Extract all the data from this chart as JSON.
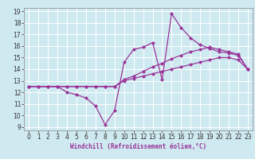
{
  "xlabel": "Windchill (Refroidissement éolien,°C)",
  "bg_color": "#cfe9f0",
  "grid_color": "#ffffff",
  "line_color": "#993399",
  "xlim": [
    -0.5,
    23.5
  ],
  "ylim": [
    8.7,
    19.3
  ],
  "xticks": [
    0,
    1,
    2,
    3,
    4,
    5,
    6,
    7,
    8,
    9,
    10,
    11,
    12,
    13,
    14,
    15,
    16,
    17,
    18,
    19,
    20,
    21,
    22,
    23
  ],
  "yticks": [
    9,
    10,
    11,
    12,
    13,
    14,
    15,
    16,
    17,
    18,
    19
  ],
  "line1_x": [
    0,
    1,
    2,
    3,
    4,
    5,
    6,
    7,
    8,
    9,
    10,
    11,
    12,
    13,
    14,
    15,
    16,
    17,
    18,
    19,
    20,
    21,
    22,
    23
  ],
  "line1_y": [
    12.5,
    12.5,
    12.5,
    12.5,
    12.0,
    11.8,
    11.5,
    10.8,
    9.2,
    10.4,
    14.6,
    15.7,
    15.9,
    16.3,
    13.1,
    18.8,
    17.6,
    16.7,
    16.1,
    15.8,
    15.5,
    15.4,
    15.2,
    14.0
  ],
  "line2_x": [
    0,
    1,
    2,
    3,
    4,
    5,
    6,
    7,
    8,
    9,
    10,
    11,
    12,
    13,
    14,
    15,
    16,
    17,
    18,
    19,
    20,
    21,
    22,
    23
  ],
  "line2_y": [
    12.5,
    12.5,
    12.5,
    12.5,
    12.5,
    12.5,
    12.5,
    12.5,
    12.5,
    12.5,
    13.0,
    13.2,
    13.4,
    13.6,
    13.8,
    14.0,
    14.2,
    14.4,
    14.6,
    14.8,
    15.0,
    15.0,
    14.8,
    14.0
  ],
  "line3_x": [
    0,
    1,
    2,
    3,
    4,
    5,
    6,
    7,
    8,
    9,
    10,
    11,
    12,
    13,
    14,
    15,
    16,
    17,
    18,
    19,
    20,
    21,
    22,
    23
  ],
  "line3_y": [
    12.5,
    12.5,
    12.5,
    12.5,
    12.5,
    12.5,
    12.5,
    12.5,
    12.5,
    12.5,
    13.1,
    13.4,
    13.8,
    14.2,
    14.5,
    14.9,
    15.2,
    15.5,
    15.7,
    15.9,
    15.7,
    15.5,
    15.3,
    14.0
  ],
  "marker": "D",
  "markersize": 2.5,
  "linewidth": 0.9,
  "tick_fontsize": 5.5,
  "xlabel_fontsize": 5.5
}
